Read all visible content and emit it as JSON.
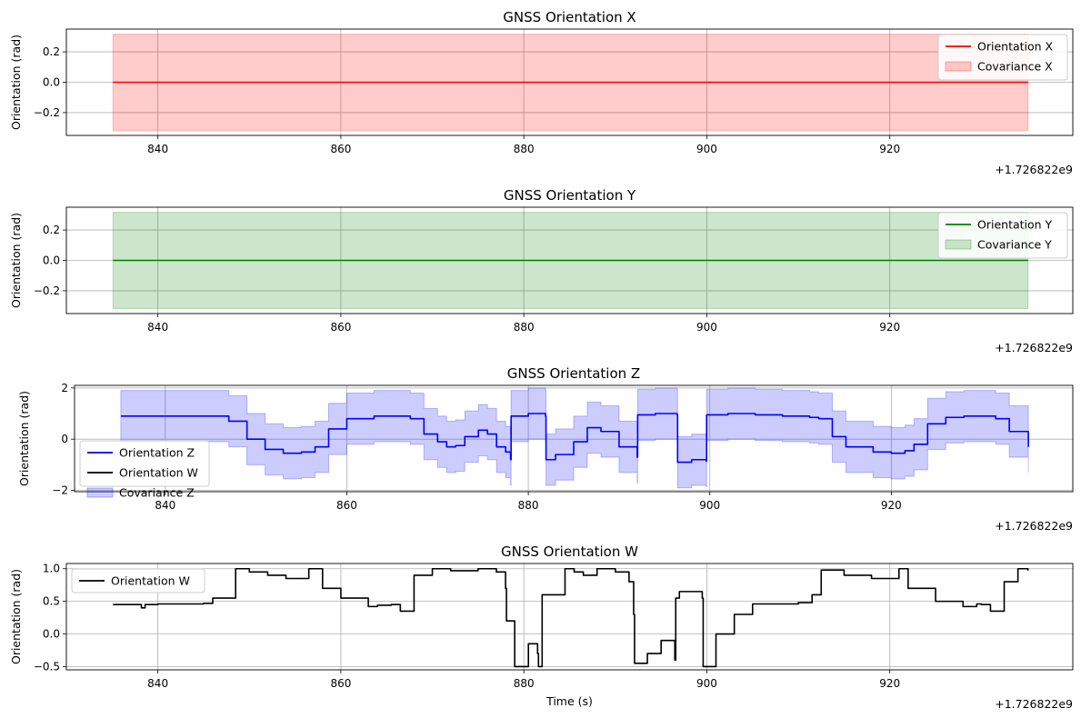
{
  "chart_data": [
    {
      "type": "line",
      "title": "GNSS Orientation X",
      "xlabel": "",
      "ylabel": "Orientation (rad)",
      "xlim": [
        830,
        940
      ],
      "ylim": [
        -0.35,
        0.35
      ],
      "xticks": [
        840,
        860,
        880,
        900,
        920
      ],
      "xtick_labels": [
        "840",
        "860",
        "880",
        "900",
        "920"
      ],
      "yticks": [
        0.2,
        0.0,
        -0.2
      ],
      "ytick_labels": [
        "0.2",
        "0.0",
        "−0.2"
      ],
      "x_offset_label": "+1.726822e9",
      "legend_position": "top-right",
      "grid": true,
      "series": [
        {
          "name": "Orientation X",
          "kind": "line",
          "color": "#ff0000",
          "x": [
            835.1,
            935.1
          ],
          "y": [
            0.0,
            0.0
          ]
        }
      ],
      "bands": [
        {
          "name": "Covariance X",
          "color": "#ff0000",
          "alpha": 0.2,
          "x": [
            835.1,
            935.1
          ],
          "lower": [
            -0.316,
            -0.316
          ],
          "upper": [
            0.316,
            0.316
          ]
        }
      ]
    },
    {
      "type": "line",
      "title": "GNSS Orientation Y",
      "xlabel": "",
      "ylabel": "Orientation (rad)",
      "xlim": [
        830,
        940
      ],
      "ylim": [
        -0.35,
        0.35
      ],
      "xticks": [
        840,
        860,
        880,
        900,
        920
      ],
      "xtick_labels": [
        "840",
        "860",
        "880",
        "900",
        "920"
      ],
      "yticks": [
        0.2,
        0.0,
        -0.2
      ],
      "ytick_labels": [
        "0.2",
        "0.0",
        "−0.2"
      ],
      "x_offset_label": "+1.726822e9",
      "legend_position": "top-right",
      "grid": true,
      "series": [
        {
          "name": "Orientation Y",
          "kind": "line",
          "color": "#008000",
          "x": [
            835.1,
            935.1
          ],
          "y": [
            0.0,
            0.0
          ]
        }
      ],
      "bands": [
        {
          "name": "Covariance Y",
          "color": "#008000",
          "alpha": 0.2,
          "x": [
            835.1,
            935.1
          ],
          "lower": [
            -0.316,
            -0.316
          ],
          "upper": [
            0.316,
            0.316
          ]
        }
      ]
    },
    {
      "type": "line",
      "title": "GNSS Orientation Z",
      "xlabel": "",
      "ylabel": "Orientation (rad)",
      "xlim": [
        830,
        940
      ],
      "ylim": [
        -2.05,
        2.1
      ],
      "xticks": [
        840,
        860,
        880,
        900,
        920
      ],
      "xtick_labels": [
        "840",
        "860",
        "880",
        "900",
        "920"
      ],
      "yticks": [
        2,
        0,
        -2
      ],
      "ytick_labels": [
        "2",
        "0",
        "−2"
      ],
      "x_offset_label": "+1.726822e9",
      "legend_position": "bottom-left",
      "grid": true,
      "band_halfwidth": 1.0,
      "series": [
        {
          "name": "Orientation Z",
          "kind": "line",
          "color": "#0000ff",
          "x": [
            835.1,
            838,
            842,
            846,
            847,
            849,
            851,
            853,
            855,
            856.5,
            858,
            860,
            863,
            866,
            867,
            868.5,
            870,
            871,
            872,
            873,
            874.5,
            875.5,
            876.5,
            877.5,
            878.05,
            878.1,
            880,
            881.9,
            881.95,
            883,
            885,
            886.5,
            888,
            890,
            892,
            892.05,
            894,
            896.4,
            896.45,
            898,
            899.6,
            899.65,
            902,
            905,
            908,
            911,
            912,
            913.5,
            915,
            918,
            920,
            921.5,
            922.5,
            924,
            926,
            928,
            931,
            931.5,
            933,
            935.1
          ],
          "y": [
            0.9,
            0.9,
            0.9,
            0.9,
            0.7,
            0.0,
            -0.4,
            -0.55,
            -0.5,
            -0.3,
            0.4,
            0.8,
            0.9,
            0.9,
            0.8,
            0.2,
            -0.1,
            -0.3,
            -0.25,
            0.1,
            0.35,
            0.2,
            -0.3,
            -0.5,
            -0.8,
            0.9,
            1.0,
            0.9,
            -0.8,
            -0.6,
            -0.1,
            0.45,
            0.3,
            -0.3,
            -0.7,
            0.95,
            1.0,
            0.95,
            -0.9,
            -0.8,
            -0.85,
            0.95,
            1.0,
            0.95,
            0.9,
            0.85,
            0.8,
            0.1,
            -0.3,
            -0.5,
            -0.55,
            -0.45,
            -0.2,
            0.6,
            0.85,
            0.9,
            0.9,
            0.8,
            0.3,
            -0.3
          ]
        },
        {
          "name": "Orientation W",
          "kind": "legend-only",
          "color": "#000000"
        }
      ],
      "bands": [
        {
          "name": "Covariance Z",
          "color": "#0000ff",
          "alpha": 0.2,
          "follows_series": 0
        }
      ]
    },
    {
      "type": "line",
      "title": "GNSS Orientation W",
      "xlabel": "Time (s)",
      "ylabel": "Orientation (rad)",
      "xlim": [
        830,
        940
      ],
      "ylim": [
        -0.55,
        1.08
      ],
      "xticks": [
        840,
        860,
        880,
        900,
        920
      ],
      "xtick_labels": [
        "840",
        "860",
        "880",
        "900",
        "920"
      ],
      "yticks": [
        1.0,
        0.5,
        0.0,
        -0.5
      ],
      "ytick_labels": [
        "1.0",
        "0.5",
        "0.0",
        "−0.5"
      ],
      "x_offset_label": "+1.726822e9",
      "legend_position": "top-left",
      "grid": true,
      "series": [
        {
          "name": "Orientation W",
          "kind": "line",
          "color": "#000000",
          "x": [
            835.1,
            838,
            838.2,
            838.6,
            840,
            845,
            846,
            848.5,
            850,
            852,
            854,
            856.5,
            858,
            860,
            863,
            864,
            865.5,
            866.5,
            868,
            870,
            872,
            875,
            877,
            878,
            878.1,
            879,
            880.5,
            881.5,
            881.6,
            882,
            884.5,
            885.5,
            886.5,
            888,
            890,
            891.5,
            892,
            892.1,
            893.5,
            895,
            896.5,
            896.6,
            897,
            899,
            899.5,
            899.6,
            901,
            903,
            905,
            910,
            911.5,
            912.5,
            915,
            918,
            921,
            922,
            925,
            928,
            929.5,
            930,
            931,
            932.5,
            934,
            935.1
          ],
          "y": [
            0.45,
            0.45,
            0.4,
            0.45,
            0.46,
            0.47,
            0.55,
            1.0,
            0.95,
            0.9,
            0.85,
            1.0,
            0.7,
            0.55,
            0.42,
            0.44,
            0.45,
            0.35,
            0.9,
            1.0,
            0.97,
            1.0,
            0.95,
            0.7,
            0.2,
            -0.5,
            -0.15,
            -0.3,
            -0.5,
            0.6,
            1.0,
            0.95,
            0.9,
            1.0,
            0.95,
            0.8,
            0.3,
            -0.45,
            -0.3,
            -0.1,
            -0.4,
            0.55,
            0.65,
            0.65,
            0.55,
            -0.5,
            0.0,
            0.3,
            0.46,
            0.48,
            0.6,
            0.98,
            0.9,
            0.85,
            1.0,
            0.7,
            0.5,
            0.42,
            0.46,
            0.45,
            0.35,
            0.8,
            1.0,
            0.97
          ]
        }
      ],
      "bands": []
    }
  ]
}
